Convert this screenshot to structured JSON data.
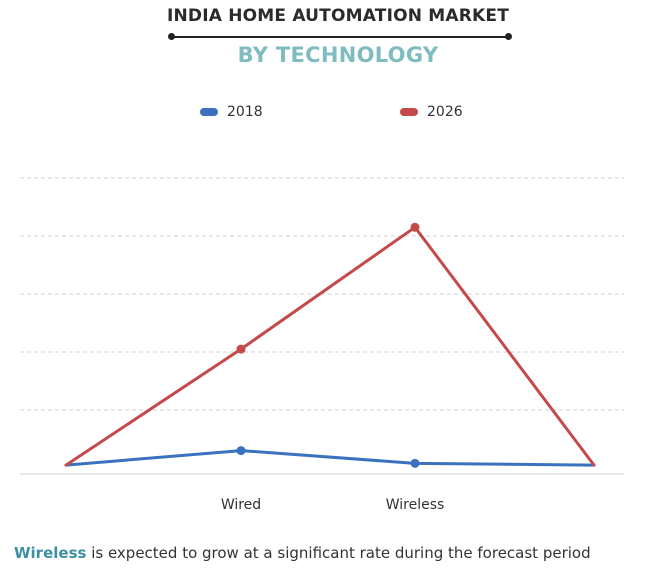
{
  "header": {
    "title": "INDIA HOME AUTOMATION MARKET",
    "subtitle": "BY TECHNOLOGY"
  },
  "legend": [
    {
      "label": "2018",
      "color": "#3b72c0"
    },
    {
      "label": "2026",
      "color": "#c44a4a"
    }
  ],
  "chart_data": {
    "type": "line",
    "title": "INDIA HOME AUTOMATION MARKET",
    "subtitle": "BY TECHNOLOGY",
    "categories": [
      "",
      "Wired",
      "Wireless",
      ""
    ],
    "series": [
      {
        "name": "2018",
        "color": "#3b72c0",
        "values": [
          0.5,
          3.0,
          0.8,
          0.5
        ]
      },
      {
        "name": "2026",
        "color": "#c44a4a",
        "values": [
          0.5,
          20.5,
          41.5,
          0.5
        ]
      }
    ],
    "ylim": [
      0,
      50
    ],
    "grid": true,
    "legend_position": "top"
  },
  "footer": {
    "highlight": "Wireless",
    "text": " is expected to grow at a significant rate during the forecast period"
  }
}
